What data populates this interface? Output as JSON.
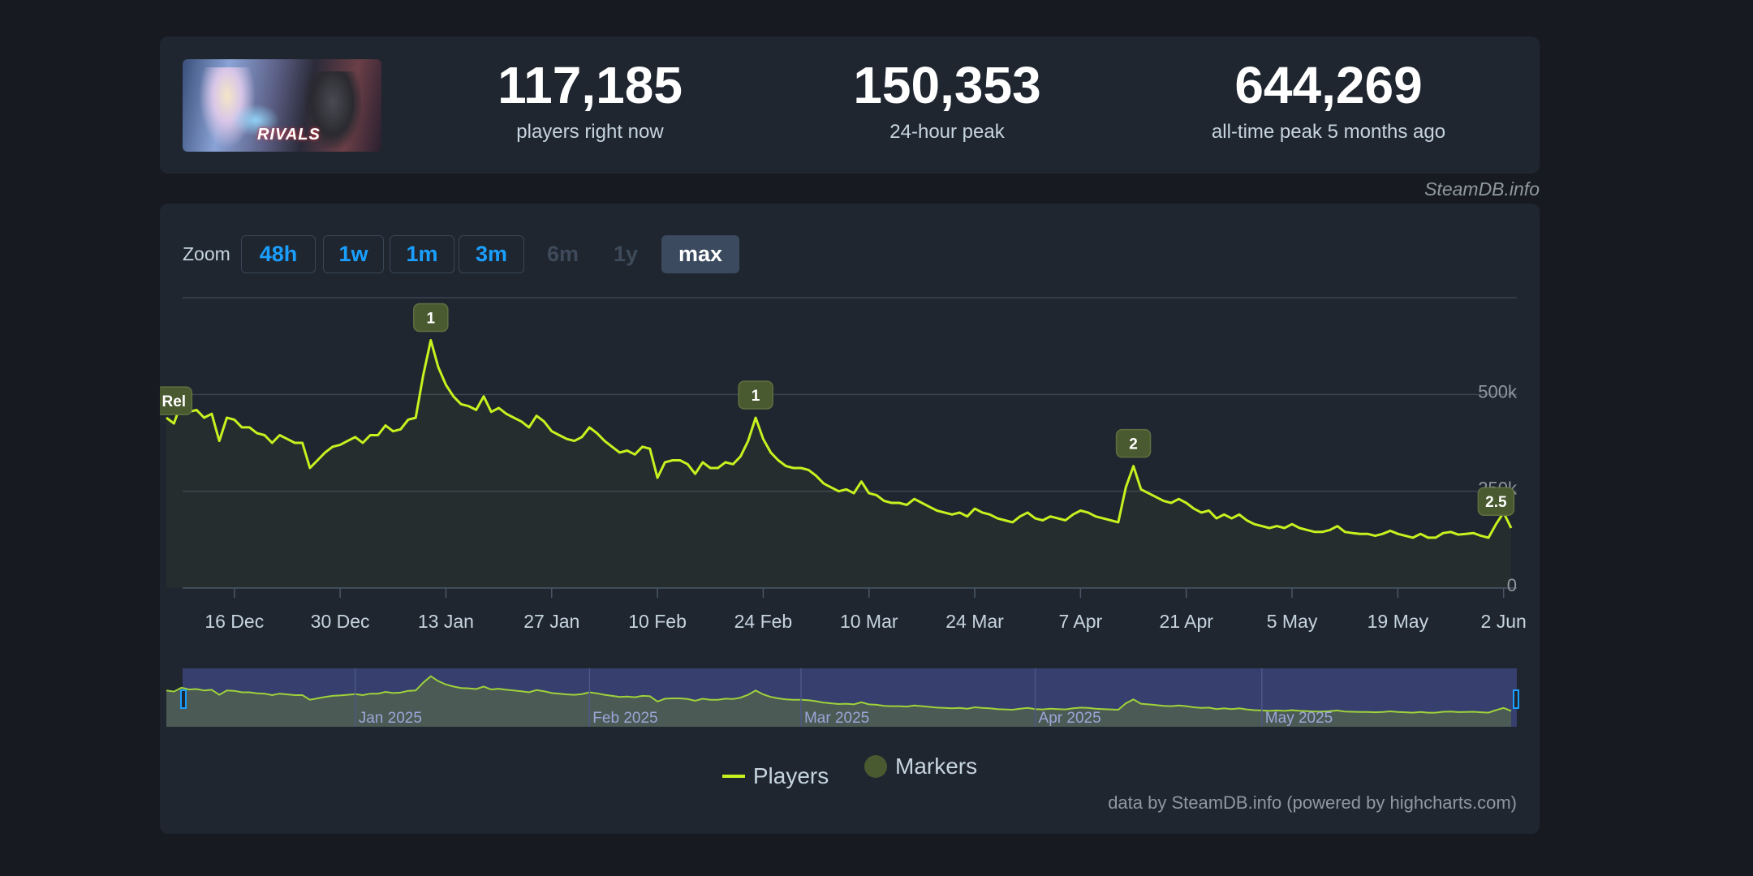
{
  "header": {
    "game_thumb_label": "Marvel Rivals",
    "logo_text": "RIVALS",
    "stats": [
      {
        "value": "117,185",
        "label": "players right now"
      },
      {
        "value": "150,353",
        "label": "24-hour peak"
      },
      {
        "value": "644,269",
        "label": "all-time peak 5 months ago"
      }
    ],
    "credit": "SteamDB.info"
  },
  "zoom": {
    "label": "Zoom",
    "buttons": [
      {
        "label": "48h",
        "state": "enabled"
      },
      {
        "label": "1w",
        "state": "enabled"
      },
      {
        "label": "1m",
        "state": "enabled"
      },
      {
        "label": "3m",
        "state": "enabled"
      },
      {
        "label": "6m",
        "state": "disabled"
      },
      {
        "label": "1y",
        "state": "disabled"
      },
      {
        "label": "max",
        "state": "active"
      }
    ]
  },
  "legend": {
    "players": "Players",
    "markers": "Markers"
  },
  "attribution": "data by SteamDB.info (powered by highcharts.com)",
  "colors": {
    "series": "#c6f21f",
    "marker_bg": "#4a5a30",
    "background": "#1f2630",
    "accent": "#1a9fff"
  },
  "chart_data": {
    "type": "line",
    "title": "",
    "xlabel": "",
    "ylabel": "",
    "series_name": "Players",
    "x_start_date": "2024-12-07",
    "x_end_date": "2025-06-03",
    "ylim": [
      0,
      750000
    ],
    "y_ticks": [
      {
        "value": 0,
        "label": "0"
      },
      {
        "value": 250000,
        "label": "250k"
      },
      {
        "value": 500000,
        "label": "500k"
      }
    ],
    "x_ticks": [
      {
        "date": "2024-12-16",
        "label": "16 Dec"
      },
      {
        "date": "2024-12-30",
        "label": "30 Dec"
      },
      {
        "date": "2025-01-13",
        "label": "13 Jan"
      },
      {
        "date": "2025-01-27",
        "label": "27 Jan"
      },
      {
        "date": "2025-02-10",
        "label": "10 Feb"
      },
      {
        "date": "2025-02-24",
        "label": "24 Feb"
      },
      {
        "date": "2025-03-10",
        "label": "10 Mar"
      },
      {
        "date": "2025-03-24",
        "label": "24 Mar"
      },
      {
        "date": "2025-04-07",
        "label": "7 Apr"
      },
      {
        "date": "2025-04-21",
        "label": "21 Apr"
      },
      {
        "date": "2025-05-05",
        "label": "5 May"
      },
      {
        "date": "2025-05-19",
        "label": "19 May"
      },
      {
        "date": "2025-06-02",
        "label": "2 Jun"
      }
    ],
    "points": [
      [
        "2024-12-07",
        440000
      ],
      [
        "2024-12-08",
        425000
      ],
      [
        "2024-12-09",
        480000
      ],
      [
        "2024-12-10",
        455000
      ],
      [
        "2024-12-11",
        460000
      ],
      [
        "2024-12-12",
        440000
      ],
      [
        "2024-12-13",
        450000
      ],
      [
        "2024-12-14",
        380000
      ],
      [
        "2024-12-15",
        440000
      ],
      [
        "2024-12-16",
        435000
      ],
      [
        "2024-12-17",
        415000
      ],
      [
        "2024-12-18",
        415000
      ],
      [
        "2024-12-19",
        400000
      ],
      [
        "2024-12-20",
        395000
      ],
      [
        "2024-12-21",
        375000
      ],
      [
        "2024-12-22",
        395000
      ],
      [
        "2024-12-23",
        385000
      ],
      [
        "2024-12-24",
        375000
      ],
      [
        "2024-12-25",
        375000
      ],
      [
        "2024-12-26",
        310000
      ],
      [
        "2024-12-27",
        330000
      ],
      [
        "2024-12-28",
        350000
      ],
      [
        "2024-12-29",
        365000
      ],
      [
        "2024-12-30",
        370000
      ],
      [
        "2024-12-31",
        380000
      ],
      [
        "2025-01-01",
        390000
      ],
      [
        "2025-01-02",
        375000
      ],
      [
        "2025-01-03",
        395000
      ],
      [
        "2025-01-04",
        395000
      ],
      [
        "2025-01-05",
        420000
      ],
      [
        "2025-01-06",
        405000
      ],
      [
        "2025-01-07",
        410000
      ],
      [
        "2025-01-08",
        435000
      ],
      [
        "2025-01-09",
        440000
      ],
      [
        "2025-01-10",
        550000
      ],
      [
        "2025-01-11",
        640000
      ],
      [
        "2025-01-12",
        570000
      ],
      [
        "2025-01-13",
        525000
      ],
      [
        "2025-01-14",
        495000
      ],
      [
        "2025-01-15",
        475000
      ],
      [
        "2025-01-16",
        470000
      ],
      [
        "2025-01-17",
        460000
      ],
      [
        "2025-01-18",
        495000
      ],
      [
        "2025-01-19",
        455000
      ],
      [
        "2025-01-20",
        465000
      ],
      [
        "2025-01-21",
        450000
      ],
      [
        "2025-01-22",
        440000
      ],
      [
        "2025-01-23",
        430000
      ],
      [
        "2025-01-24",
        415000
      ],
      [
        "2025-01-25",
        445000
      ],
      [
        "2025-01-26",
        430000
      ],
      [
        "2025-01-27",
        405000
      ],
      [
        "2025-01-28",
        395000
      ],
      [
        "2025-01-29",
        385000
      ],
      [
        "2025-01-30",
        380000
      ],
      [
        "2025-01-31",
        390000
      ],
      [
        "2025-02-01",
        415000
      ],
      [
        "2025-02-02",
        400000
      ],
      [
        "2025-02-03",
        380000
      ],
      [
        "2025-02-04",
        365000
      ],
      [
        "2025-02-05",
        350000
      ],
      [
        "2025-02-06",
        355000
      ],
      [
        "2025-02-07",
        345000
      ],
      [
        "2025-02-08",
        365000
      ],
      [
        "2025-02-09",
        360000
      ],
      [
        "2025-02-10",
        285000
      ],
      [
        "2025-02-11",
        325000
      ],
      [
        "2025-02-12",
        330000
      ],
      [
        "2025-02-13",
        330000
      ],
      [
        "2025-02-14",
        320000
      ],
      [
        "2025-02-15",
        295000
      ],
      [
        "2025-02-16",
        325000
      ],
      [
        "2025-02-17",
        310000
      ],
      [
        "2025-02-18",
        310000
      ],
      [
        "2025-02-19",
        325000
      ],
      [
        "2025-02-20",
        320000
      ],
      [
        "2025-02-21",
        340000
      ],
      [
        "2025-02-22",
        380000
      ],
      [
        "2025-02-23",
        440000
      ],
      [
        "2025-02-24",
        385000
      ],
      [
        "2025-02-25",
        350000
      ],
      [
        "2025-02-26",
        330000
      ],
      [
        "2025-02-27",
        315000
      ],
      [
        "2025-02-28",
        310000
      ],
      [
        "2025-03-01",
        310000
      ],
      [
        "2025-03-02",
        305000
      ],
      [
        "2025-03-03",
        290000
      ],
      [
        "2025-03-04",
        270000
      ],
      [
        "2025-03-05",
        260000
      ],
      [
        "2025-03-06",
        250000
      ],
      [
        "2025-03-07",
        255000
      ],
      [
        "2025-03-08",
        245000
      ],
      [
        "2025-03-09",
        275000
      ],
      [
        "2025-03-10",
        245000
      ],
      [
        "2025-03-11",
        240000
      ],
      [
        "2025-03-12",
        225000
      ],
      [
        "2025-03-13",
        220000
      ],
      [
        "2025-03-14",
        220000
      ],
      [
        "2025-03-15",
        215000
      ],
      [
        "2025-03-16",
        230000
      ],
      [
        "2025-03-17",
        220000
      ],
      [
        "2025-03-18",
        210000
      ],
      [
        "2025-03-19",
        200000
      ],
      [
        "2025-03-20",
        195000
      ],
      [
        "2025-03-21",
        190000
      ],
      [
        "2025-03-22",
        195000
      ],
      [
        "2025-03-23",
        185000
      ],
      [
        "2025-03-24",
        205000
      ],
      [
        "2025-03-25",
        195000
      ],
      [
        "2025-03-26",
        190000
      ],
      [
        "2025-03-27",
        180000
      ],
      [
        "2025-03-28",
        175000
      ],
      [
        "2025-03-29",
        170000
      ],
      [
        "2025-03-30",
        185000
      ],
      [
        "2025-03-31",
        195000
      ],
      [
        "2025-04-01",
        180000
      ],
      [
        "2025-04-02",
        175000
      ],
      [
        "2025-04-03",
        185000
      ],
      [
        "2025-04-04",
        180000
      ],
      [
        "2025-04-05",
        175000
      ],
      [
        "2025-04-06",
        190000
      ],
      [
        "2025-04-07",
        200000
      ],
      [
        "2025-04-08",
        195000
      ],
      [
        "2025-04-09",
        185000
      ],
      [
        "2025-04-10",
        180000
      ],
      [
        "2025-04-11",
        175000
      ],
      [
        "2025-04-12",
        170000
      ],
      [
        "2025-04-13",
        260000
      ],
      [
        "2025-04-14",
        315000
      ],
      [
        "2025-04-15",
        255000
      ],
      [
        "2025-04-16",
        245000
      ],
      [
        "2025-04-17",
        235000
      ],
      [
        "2025-04-18",
        225000
      ],
      [
        "2025-04-19",
        220000
      ],
      [
        "2025-04-20",
        230000
      ],
      [
        "2025-04-21",
        220000
      ],
      [
        "2025-04-22",
        205000
      ],
      [
        "2025-04-23",
        195000
      ],
      [
        "2025-04-24",
        200000
      ],
      [
        "2025-04-25",
        180000
      ],
      [
        "2025-04-26",
        190000
      ],
      [
        "2025-04-27",
        180000
      ],
      [
        "2025-04-28",
        190000
      ],
      [
        "2025-04-29",
        175000
      ],
      [
        "2025-04-30",
        165000
      ],
      [
        "2025-05-01",
        160000
      ],
      [
        "2025-05-02",
        155000
      ],
      [
        "2025-05-03",
        160000
      ],
      [
        "2025-05-04",
        155000
      ],
      [
        "2025-05-05",
        165000
      ],
      [
        "2025-05-06",
        155000
      ],
      [
        "2025-05-07",
        150000
      ],
      [
        "2025-05-08",
        145000
      ],
      [
        "2025-05-09",
        145000
      ],
      [
        "2025-05-10",
        150000
      ],
      [
        "2025-05-11",
        160000
      ],
      [
        "2025-05-12",
        145000
      ],
      [
        "2025-05-13",
        142000
      ],
      [
        "2025-05-14",
        140000
      ],
      [
        "2025-05-15",
        140000
      ],
      [
        "2025-05-16",
        135000
      ],
      [
        "2025-05-17",
        140000
      ],
      [
        "2025-05-18",
        148000
      ],
      [
        "2025-05-19",
        140000
      ],
      [
        "2025-05-20",
        135000
      ],
      [
        "2025-05-21",
        130000
      ],
      [
        "2025-05-22",
        140000
      ],
      [
        "2025-05-23",
        130000
      ],
      [
        "2025-05-24",
        130000
      ],
      [
        "2025-05-25",
        142000
      ],
      [
        "2025-05-26",
        145000
      ],
      [
        "2025-05-27",
        138000
      ],
      [
        "2025-05-28",
        140000
      ],
      [
        "2025-05-29",
        142000
      ],
      [
        "2025-05-30",
        135000
      ],
      [
        "2025-05-31",
        130000
      ],
      [
        "2025-06-01",
        165000
      ],
      [
        "2025-06-02",
        195000
      ],
      [
        "2025-06-03",
        155000
      ]
    ],
    "markers": [
      {
        "date": "2024-12-08",
        "label": "Rel"
      },
      {
        "date": "2025-01-11",
        "label": "1"
      },
      {
        "date": "2025-02-23",
        "label": "1"
      },
      {
        "date": "2025-04-14",
        "label": "2"
      },
      {
        "date": "2025-06-01",
        "label": "2.5"
      }
    ],
    "navigator": {
      "labels": [
        {
          "date": "2025-01-01",
          "label": "Jan 2025"
        },
        {
          "date": "2025-02-01",
          "label": "Feb 2025"
        },
        {
          "date": "2025-03-01",
          "label": "Mar 2025"
        },
        {
          "date": "2025-04-01",
          "label": "Apr 2025"
        },
        {
          "date": "2025-05-01",
          "label": "May 2025"
        }
      ]
    }
  }
}
